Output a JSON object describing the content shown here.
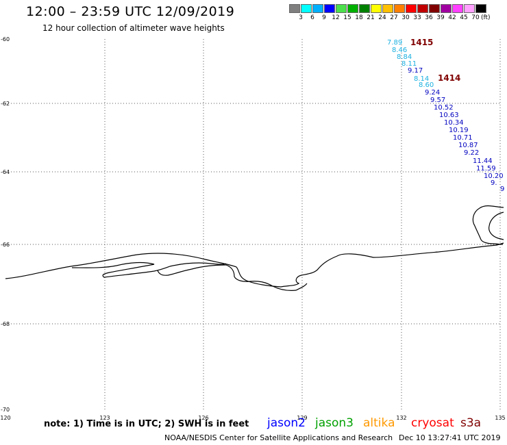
{
  "header": {
    "title": "12:00 – 23:59 UTC 12/09/2019",
    "subtitle": "12 hour collection of altimeter wave heights"
  },
  "colorbar": {
    "colors": [
      "#7f7f7f",
      "#00ffff",
      "#00b0ff",
      "#0000ff",
      "#4ce04c",
      "#00b000",
      "#008000",
      "#ffff00",
      "#ffc000",
      "#ff8000",
      "#ff0000",
      "#c00000",
      "#800000",
      "#a000a0",
      "#ff40ff",
      "#ffa0ff",
      "#000000"
    ],
    "labels": [
      "3",
      "6",
      "9",
      "12",
      "15",
      "18",
      "21",
      "24",
      "27",
      "30",
      "33",
      "36",
      "39",
      "42",
      "45",
      "70"
    ],
    "unit": "(ft)"
  },
  "map": {
    "lat_labels": [
      "-60",
      "-62",
      "-64",
      "-66",
      "-68",
      "-70"
    ],
    "lon_labels": [
      "120",
      "123",
      "126",
      "129",
      "132",
      "135"
    ]
  },
  "passes": [
    {
      "id": "1415",
      "color": "#800000"
    },
    {
      "id": "1414",
      "color": "#800000"
    }
  ],
  "observations": [
    {
      "value": "7.89",
      "color": "#1ab0e0"
    },
    {
      "value": "8.46",
      "color": "#1ab0e0"
    },
    {
      "value": "8.84",
      "color": "#1ab0e0"
    },
    {
      "value": "8.11",
      "color": "#1ab0e0"
    },
    {
      "value": "9.17",
      "color": "#0000c0"
    },
    {
      "value": "8.14",
      "color": "#1ab0e0"
    },
    {
      "value": "8.60",
      "color": "#1ab0e0"
    },
    {
      "value": "9.24",
      "color": "#0000c0"
    },
    {
      "value": "9.57",
      "color": "#0000c0"
    },
    {
      "value": "10.52",
      "color": "#0000c0"
    },
    {
      "value": "10.63",
      "color": "#0000c0"
    },
    {
      "value": "10.34",
      "color": "#0000c0"
    },
    {
      "value": "10.19",
      "color": "#0000c0"
    },
    {
      "value": "10.71",
      "color": "#0000c0"
    },
    {
      "value": "10.87",
      "color": "#0000c0"
    },
    {
      "value": "9.22",
      "color": "#0000c0"
    },
    {
      "value": "11.44",
      "color": "#0000c0"
    },
    {
      "value": "11.59",
      "color": "#0000c0"
    },
    {
      "value": "10.20",
      "color": "#0000c0"
    },
    {
      "value": "9.",
      "color": "#0000c0"
    },
    {
      "value": "9",
      "color": "#0000c0"
    }
  ],
  "footer": {
    "note": "note: 1) Time is in UTC; 2) SWH is in feet",
    "satellites": [
      {
        "name": "jason2",
        "color": "#0000ff"
      },
      {
        "name": "jason3",
        "color": "#00a000"
      },
      {
        "name": "altika",
        "color": "#ff9900"
      },
      {
        "name": "cryosat",
        "color": "#ff0000"
      },
      {
        "name": "s3a",
        "color": "#800000"
      }
    ],
    "credit": "NOAA/NESDIS Center for Satellite Applications and Research",
    "timestamp": "Dec 10 13:27:41 UTC 2019"
  }
}
